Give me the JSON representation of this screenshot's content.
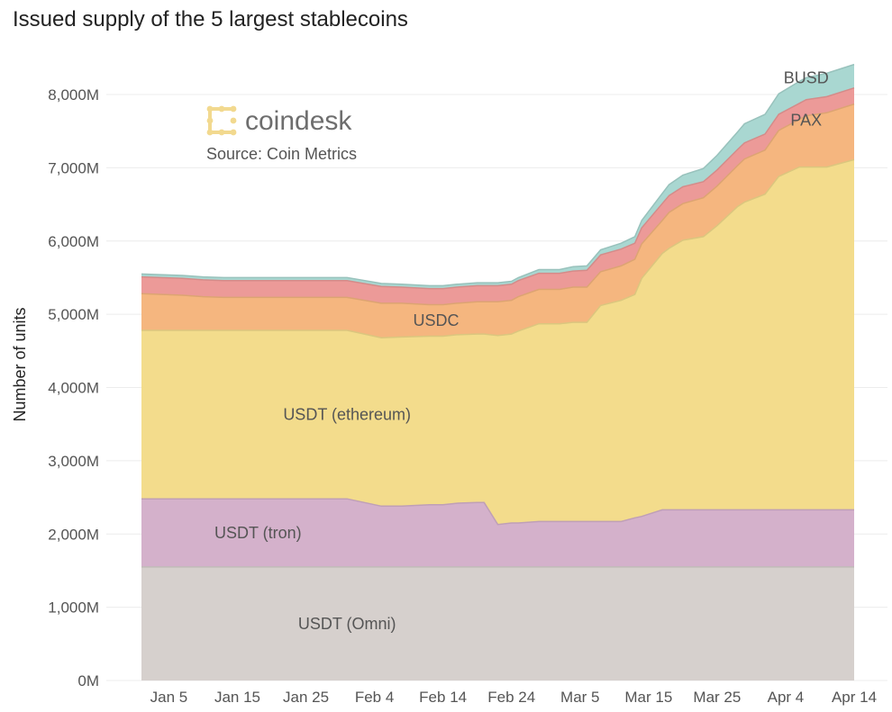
{
  "chart_data": {
    "type": "area",
    "stacked": true,
    "title": "Issued supply of the 5 largest stablecoins",
    "xlabel": "",
    "ylabel": "Number of units",
    "ylim": [
      0,
      8500
    ],
    "y_ticks": [
      0,
      1000,
      2000,
      3000,
      4000,
      5000,
      6000,
      7000,
      8000
    ],
    "y_tick_labels": [
      "0M",
      "1,000M",
      "2,000M",
      "3,000M",
      "4,000M",
      "5,000M",
      "6,000M",
      "7,000M",
      "8,000M"
    ],
    "x_start": "Jan 1",
    "x_end": "Apr 14",
    "x_ticks": [
      {
        "day": 4,
        "label": "Jan 5"
      },
      {
        "day": 14,
        "label": "Jan 15"
      },
      {
        "day": 24,
        "label": "Jan 25"
      },
      {
        "day": 34,
        "label": "Feb 4"
      },
      {
        "day": 44,
        "label": "Feb 14"
      },
      {
        "day": 54,
        "label": "Feb 24"
      },
      {
        "day": 64,
        "label": "Mar 5"
      },
      {
        "day": 74,
        "label": "Mar 15"
      },
      {
        "day": 84,
        "label": "Mar 25"
      },
      {
        "day": 94,
        "label": "Apr 4"
      },
      {
        "day": 104,
        "label": "Apr 14"
      }
    ],
    "x_days": [
      0,
      6,
      9,
      12,
      20,
      26,
      30,
      35,
      38,
      42,
      44,
      46,
      49,
      50,
      52,
      54,
      55,
      58,
      61,
      63,
      65,
      67,
      70,
      72,
      73,
      76,
      77,
      79,
      82,
      84,
      87,
      88,
      91,
      93,
      96,
      97,
      100,
      104
    ],
    "series": [
      {
        "name": "USDT (Omni)",
        "label": "USDT (Omni)",
        "color": "#d6d0cd",
        "values": [
          1550,
          1550,
          1550,
          1550,
          1550,
          1550,
          1550,
          1550,
          1550,
          1550,
          1550,
          1550,
          1550,
          1550,
          1550,
          1550,
          1550,
          1550,
          1550,
          1550,
          1550,
          1550,
          1550,
          1550,
          1550,
          1550,
          1550,
          1550,
          1550,
          1550,
          1550,
          1550,
          1550,
          1550,
          1550,
          1550,
          1550,
          1550
        ]
      },
      {
        "name": "USDT (tron)",
        "label": "USDT (tron)",
        "color": "#d4b1cb",
        "values": [
          930,
          930,
          930,
          930,
          930,
          930,
          930,
          830,
          830,
          850,
          850,
          870,
          880,
          880,
          580,
          600,
          600,
          620,
          620,
          620,
          620,
          620,
          620,
          670,
          690,
          780,
          780,
          780,
          780,
          780,
          780,
          780,
          780,
          780,
          780,
          780,
          780,
          780
        ]
      },
      {
        "name": "USDT (ethereum)",
        "label": "USDT (ethereum)",
        "color": "#f3dc8c",
        "values": [
          2300,
          2300,
          2300,
          2300,
          2300,
          2300,
          2300,
          2300,
          2310,
          2300,
          2300,
          2300,
          2300,
          2300,
          2580,
          2580,
          2620,
          2700,
          2700,
          2720,
          2720,
          2950,
          3020,
          3050,
          3250,
          3500,
          3570,
          3680,
          3730,
          3880,
          4140,
          4200,
          4310,
          4550,
          4680,
          4680,
          4680,
          4780
        ]
      },
      {
        "name": "USDC",
        "label": "USDC",
        "color": "#f5b67f",
        "values": [
          500,
          480,
          460,
          450,
          450,
          450,
          450,
          470,
          460,
          430,
          430,
          430,
          440,
          440,
          460,
          460,
          470,
          470,
          470,
          480,
          480,
          460,
          470,
          480,
          470,
          450,
          490,
          500,
          530,
          540,
          560,
          590,
          600,
          630,
          650,
          700,
          740,
          760
        ]
      },
      {
        "name": "PAX",
        "label": "PAX",
        "color": "#ec9a98",
        "values": [
          230,
          230,
          230,
          230,
          230,
          230,
          230,
          230,
          220,
          220,
          220,
          220,
          220,
          220,
          220,
          220,
          220,
          220,
          220,
          220,
          230,
          230,
          230,
          220,
          220,
          230,
          230,
          230,
          220,
          220,
          220,
          220,
          220,
          220,
          220,
          220,
          220,
          220
        ]
      },
      {
        "name": "BUSD",
        "label": "BUSD",
        "color": "#a9d7d1",
        "values": [
          40,
          40,
          40,
          40,
          40,
          40,
          40,
          40,
          40,
          40,
          40,
          40,
          40,
          40,
          40,
          40,
          40,
          50,
          50,
          60,
          60,
          70,
          80,
          90,
          100,
          140,
          150,
          160,
          180,
          200,
          240,
          260,
          270,
          280,
          300,
          300,
          320,
          320
        ]
      }
    ],
    "watermark": {
      "brand": "coindesk",
      "source": "Source: Coin Metrics"
    }
  }
}
